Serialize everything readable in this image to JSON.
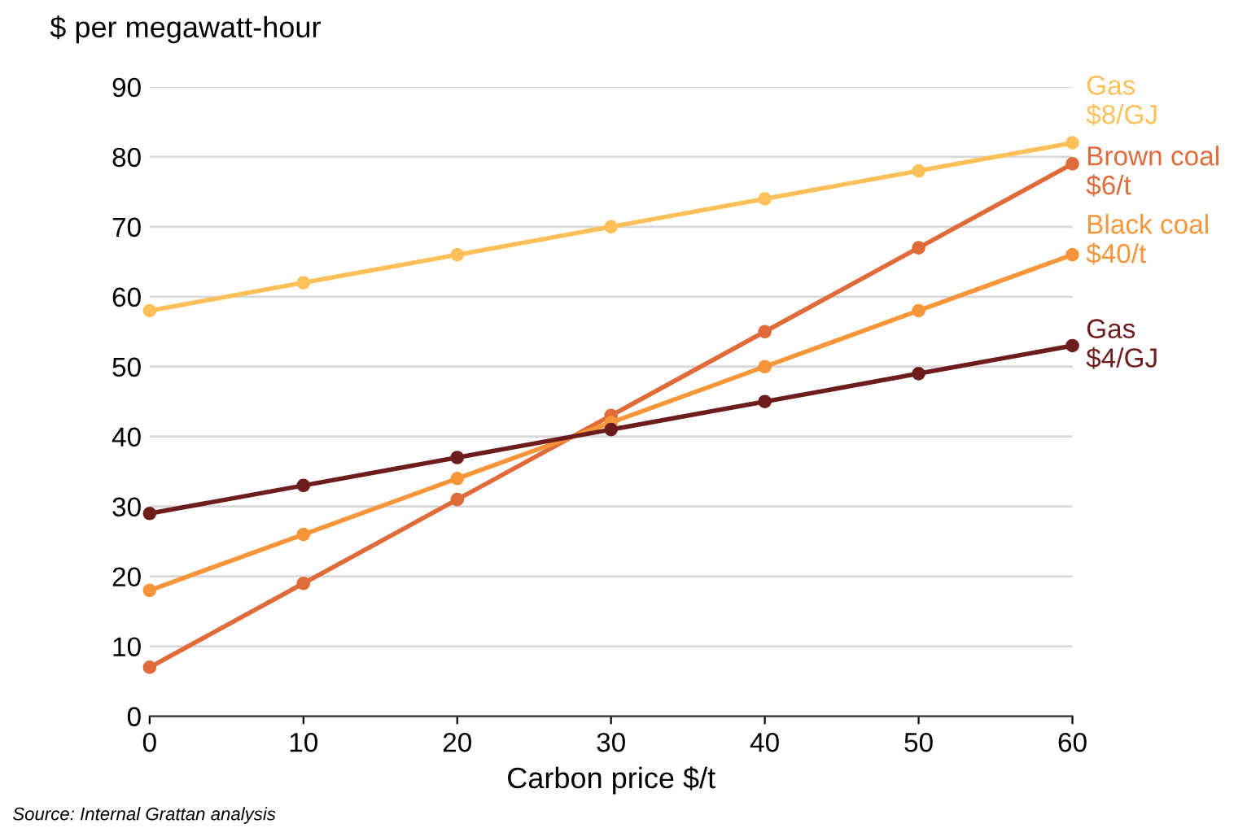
{
  "chart_data": {
    "type": "line",
    "ylabel": "$ per megawatt-hour",
    "xlabel": "Carbon price $/t",
    "x": [
      0,
      10,
      20,
      30,
      40,
      50,
      60
    ],
    "series": [
      {
        "name": "Gas\n$8/GJ",
        "color": "#fdc05a",
        "values": [
          58,
          62,
          66,
          70,
          74,
          78,
          82
        ]
      },
      {
        "name": "Brown coal\n$6/t",
        "color": "#e06b3a",
        "values": [
          7,
          19,
          31,
          43,
          55,
          67,
          79
        ]
      },
      {
        "name": "Black coal\n$40/t",
        "color": "#f7953a",
        "values": [
          18,
          26,
          34,
          42,
          50,
          58,
          66
        ]
      },
      {
        "name": "Gas\n$4/GJ",
        "color": "#6e1d1f",
        "values": [
          29,
          33,
          37,
          41,
          45,
          49,
          53
        ]
      }
    ],
    "xlim": [
      0,
      60
    ],
    "xticks": [
      0,
      10,
      20,
      30,
      40,
      50,
      60
    ],
    "ylim": [
      0,
      90
    ],
    "yticks": [
      0,
      10,
      20,
      30,
      40,
      50,
      60,
      70,
      80,
      90
    ],
    "grid": "y",
    "marker": "circle",
    "line_style": "solid",
    "legend": false,
    "annotations": [
      "Source: Internal Grattan analysis"
    ]
  }
}
